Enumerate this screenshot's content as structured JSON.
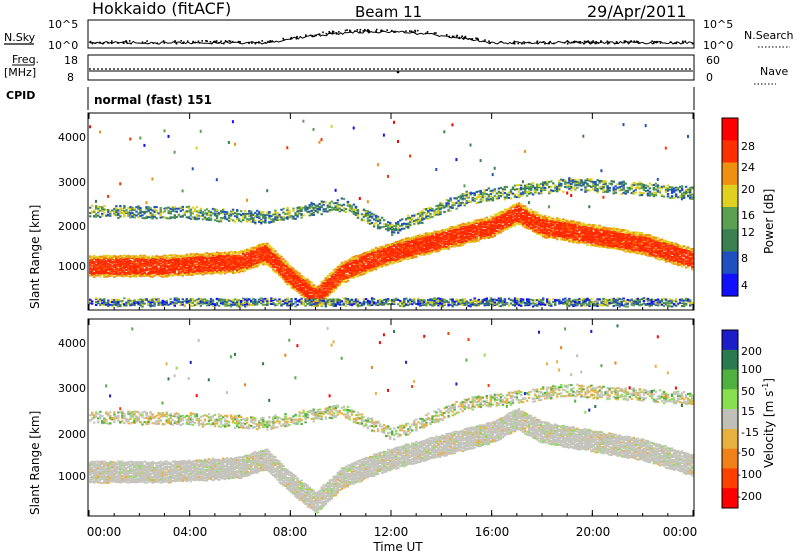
{
  "header": {
    "station": "Hokkaido (fitACF)",
    "beam": "Beam 11",
    "date": "29/Apr/2011"
  },
  "noise_panel": {
    "left_label": "N.Sky",
    "left_ticks": [
      "10^5",
      "10^0"
    ],
    "right_ticks": [
      "10^5",
      "10^0"
    ],
    "right_label": "N.Search"
  },
  "freq_panel": {
    "left_label_1": "Freq.",
    "left_label_2": "[MHz]",
    "left_ticks": [
      "18",
      "8"
    ],
    "right_ticks": [
      "60",
      "0"
    ],
    "right_label": "Nave"
  },
  "cpid_panel": {
    "label": "CPID",
    "mode": "normal (fast) 151"
  },
  "power_panel": {
    "ylabel": "Slant Range [km]",
    "yticks": [
      "1000",
      "2000",
      "3000",
      "4000"
    ],
    "colorbar_label": "Power [dB]",
    "colorbar_ticks": [
      "4",
      "8",
      "12",
      "16",
      "20",
      "24",
      "28"
    ]
  },
  "velocity_panel": {
    "ylabel": "Slant Range [km]",
    "yticks": [
      "1000",
      "2000",
      "3000",
      "4000"
    ],
    "colorbar_label": "Velocity [m s",
    "colorbar_label_sup": "-1",
    "colorbar_label_end": "]",
    "colorbar_ticks": [
      "200",
      "100",
      "50",
      "15",
      "-15",
      "-50",
      "-100",
      "-200"
    ]
  },
  "x_axis": {
    "label": "Time UT",
    "ticks": [
      "00:00",
      "04:00",
      "08:00",
      "12:00",
      "16:00",
      "20:00",
      "00:00"
    ]
  },
  "chart_data": [
    {
      "type": "heatmap",
      "title": "Power [dB]",
      "xlabel": "Time UT",
      "ylabel": "Slant Range [km]",
      "xlim": [
        0,
        24
      ],
      "ylim": [
        180,
        4600
      ],
      "color_scale": [
        0,
        30
      ],
      "color_ticks": [
        4,
        8,
        12,
        16,
        20,
        24,
        28
      ],
      "colors": [
        "#1010ff",
        "#2050c0",
        "#3a8050",
        "#5aa050",
        "#e0d020",
        "#f09010",
        "#ff3000",
        "#ff0000"
      ],
      "bands": [
        {
          "name": "main",
          "points": [
            [
              0,
              1150
            ],
            [
              3,
              1150
            ],
            [
              6,
              1250
            ],
            [
              7,
              1450
            ],
            [
              8,
              900
            ],
            [
              9,
              450
            ],
            [
              10,
              1000
            ],
            [
              11,
              1250
            ],
            [
              12,
              1450
            ],
            [
              14,
              1750
            ],
            [
              16,
              2050
            ],
            [
              17,
              2350
            ],
            [
              18,
              2050
            ],
            [
              20,
              1850
            ],
            [
              22,
              1650
            ],
            [
              24,
              1300
            ]
          ],
          "width": 450,
          "power": 27
        },
        {
          "name": "upper",
          "points": [
            [
              0,
              2400
            ],
            [
              4,
              2350
            ],
            [
              7,
              2250
            ],
            [
              10,
              2550
            ],
            [
              12,
              2000
            ],
            [
              15,
              2700
            ],
            [
              19,
              3000
            ],
            [
              22,
              2900
            ],
            [
              24,
              2800
            ]
          ],
          "width": 260,
          "power": 12
        },
        {
          "name": "near",
          "points": [
            [
              0,
              330
            ],
            [
              24,
              330
            ]
          ],
          "width": 150,
          "power": 10
        }
      ]
    },
    {
      "type": "heatmap",
      "title": "Velocity [m s-1]",
      "xlabel": "Time UT",
      "ylabel": "Slant Range [km]",
      "xlim": [
        0,
        24
      ],
      "ylim": [
        180,
        4600
      ],
      "color_ticks": [
        200,
        100,
        50,
        15,
        -15,
        -50,
        -100,
        -200
      ],
      "colors": [
        "#1c1cc8",
        "#2a7a50",
        "#50b040",
        "#88e050",
        "#c0c0b8",
        "#e8b040",
        "#f08018",
        "#ff4000",
        "#ff0000"
      ],
      "bands": [
        {
          "name": "main",
          "points": [
            [
              0,
              1150
            ],
            [
              3,
              1150
            ],
            [
              6,
              1250
            ],
            [
              7,
              1450
            ],
            [
              8,
              900
            ],
            [
              9,
              450
            ],
            [
              10,
              1000
            ],
            [
              11,
              1250
            ],
            [
              12,
              1450
            ],
            [
              14,
              1750
            ],
            [
              16,
              2050
            ],
            [
              17,
              2350
            ],
            [
              18,
              2050
            ],
            [
              20,
              1850
            ],
            [
              22,
              1650
            ],
            [
              24,
              1300
            ]
          ],
          "width": 450,
          "velocity": 0
        },
        {
          "name": "upper",
          "points": [
            [
              0,
              2400
            ],
            [
              4,
              2350
            ],
            [
              7,
              2250
            ],
            [
              10,
              2550
            ],
            [
              12,
              2000
            ],
            [
              15,
              2700
            ],
            [
              19,
              3000
            ],
            [
              22,
              2900
            ],
            [
              24,
              2800
            ]
          ],
          "width": 260,
          "velocity": -30
        }
      ]
    }
  ]
}
